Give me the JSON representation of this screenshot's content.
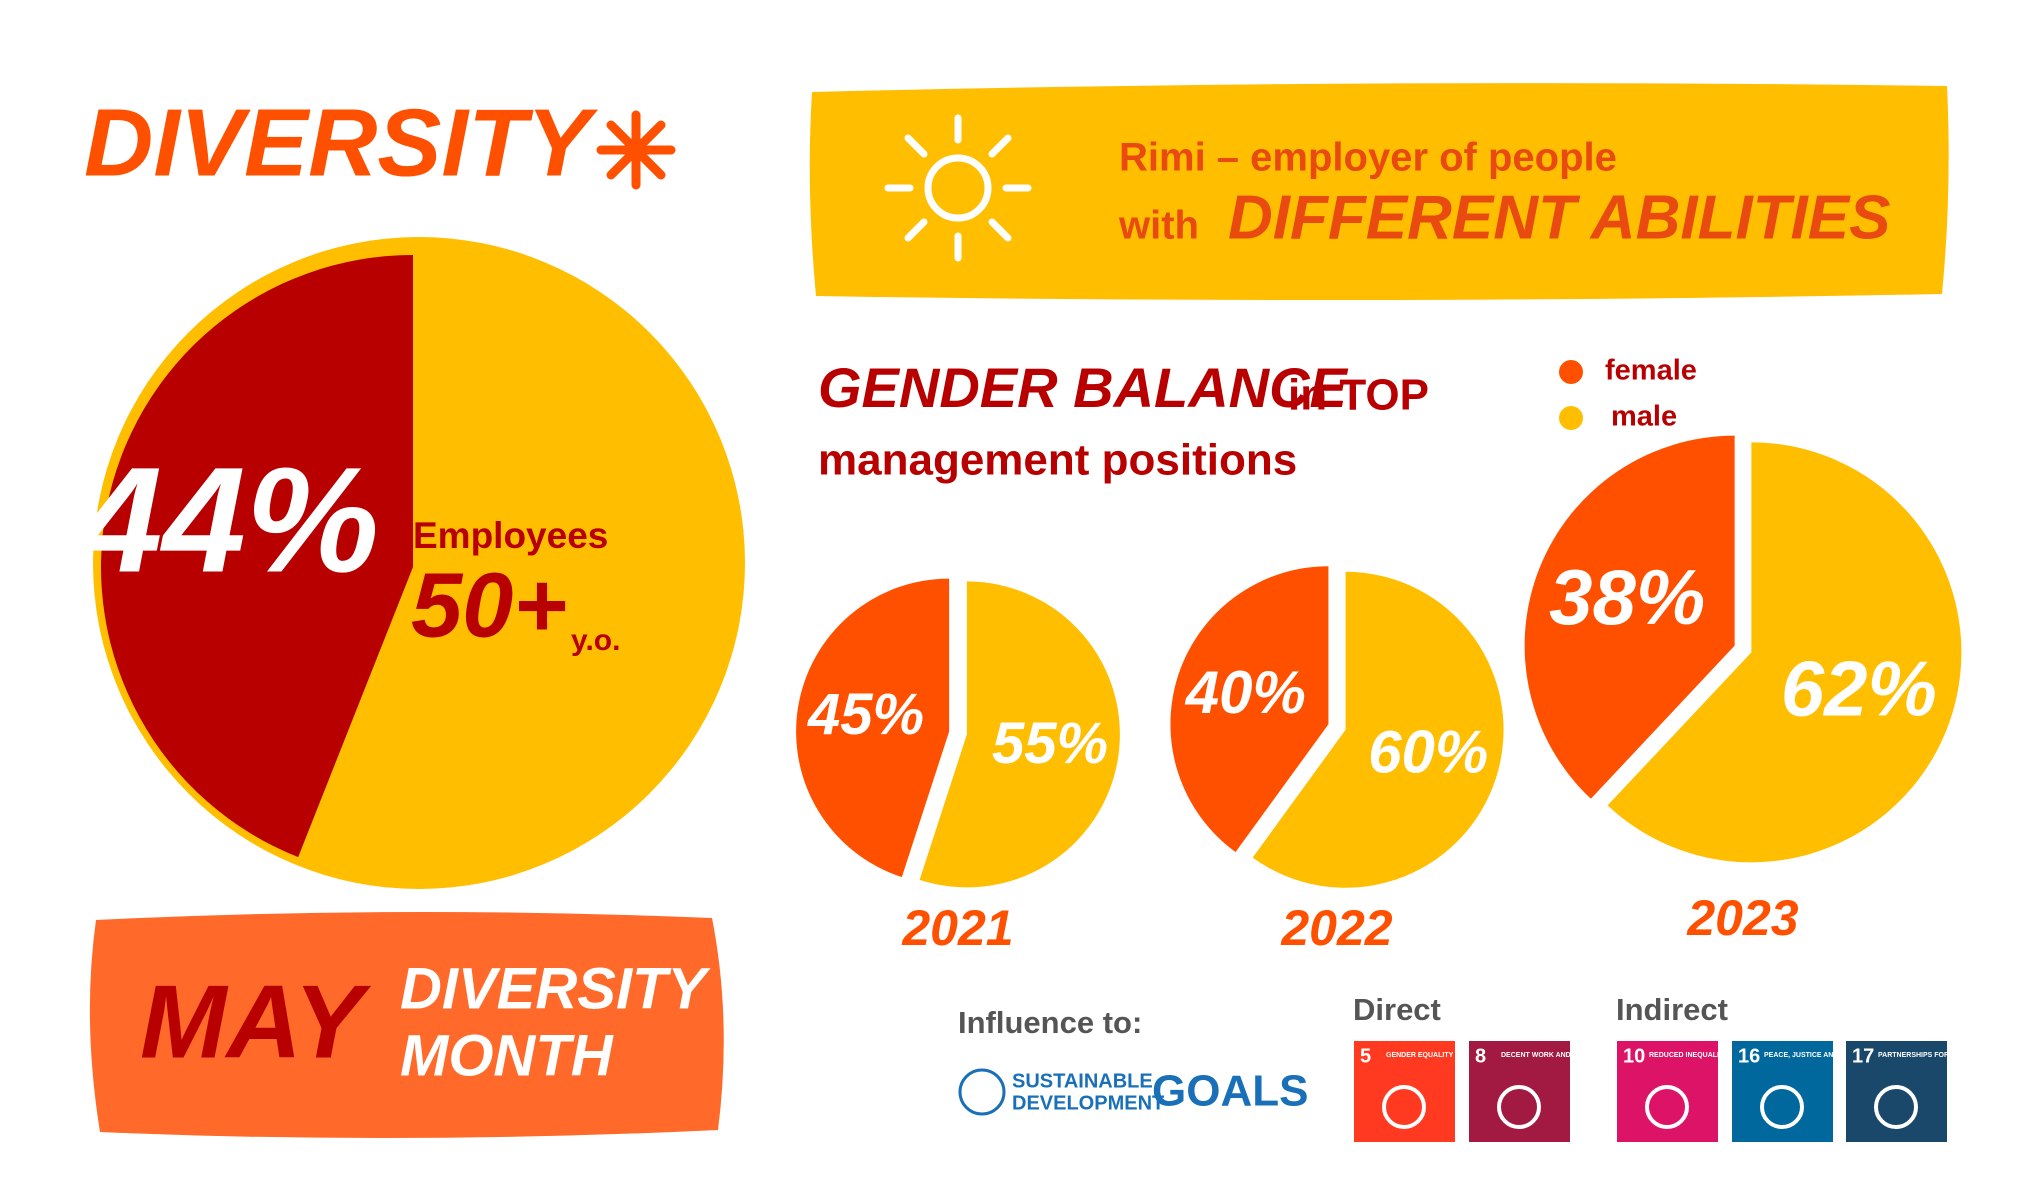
{
  "header": {
    "title": "DIVERSITY"
  },
  "banner": {
    "line1": "Rimi – employer of people",
    "with": "with",
    "highlight": "DIFFERENT ABILITIES"
  },
  "gender": {
    "title": "GENDER BALANCE",
    "title_rest": "in TOP",
    "subtitle": "management positions",
    "legend": [
      {
        "name": "female",
        "color": "#ff5000"
      },
      {
        "name": "male",
        "color": "#ffbe00"
      }
    ]
  },
  "chart_data": [
    {
      "type": "pie",
      "values": [
        44
      ],
      "value_labels": [
        "44%"
      ],
      "colors": [
        "#b80000"
      ],
      "rest_color": "#ffbe00",
      "label": "Employees",
      "label_big": "50+",
      "label_unit": "y.o."
    },
    {
      "type": "pie",
      "title": "2021",
      "values": [
        45,
        55
      ],
      "value_labels": [
        "45%",
        "55%"
      ]
    },
    {
      "type": "pie",
      "title": "2022",
      "values": [
        40,
        60
      ],
      "value_labels": [
        "40%",
        "60%"
      ]
    },
    {
      "type": "pie",
      "title": "2023",
      "values": [
        38,
        62
      ],
      "value_labels": [
        "38%",
        "62%"
      ]
    }
  ],
  "month": {
    "name": "MAY",
    "line1": "DIVERSITY",
    "line2": "MONTH"
  },
  "sdg": {
    "influence": "Influence to:",
    "logo": [
      "SUSTAINABLE",
      "DEVELOPMENT",
      "GOALS"
    ],
    "direct_label": "Direct",
    "indirect_label": "Indirect",
    "direct": [
      {
        "number": "5",
        "text": "GENDER EQUALITY",
        "color": "#ff3a21"
      },
      {
        "number": "8",
        "text": "DECENT WORK AND ECONOMIC GROWTH",
        "color": "#a21942"
      }
    ],
    "indirect": [
      {
        "number": "10",
        "text": "REDUCED INEQUALITIES",
        "color": "#dd1367"
      },
      {
        "number": "16",
        "text": "PEACE, JUSTICE AND STRONG INSTITUTIONS",
        "color": "#00689d"
      },
      {
        "number": "17",
        "text": "PARTNERSHIPS FOR THE GOALS",
        "color": "#19486a"
      }
    ]
  }
}
